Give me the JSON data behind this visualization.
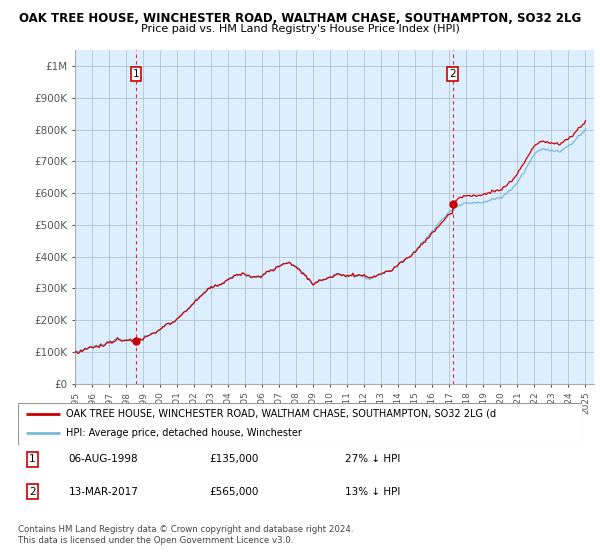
{
  "title": "OAK TREE HOUSE, WINCHESTER ROAD, WALTHAM CHASE, SOUTHAMPTON, SO32 2LG",
  "subtitle": "Price paid vs. HM Land Registry's House Price Index (HPI)",
  "legend_label_red": "OAK TREE HOUSE, WINCHESTER ROAD, WALTHAM CHASE, SOUTHAMPTON, SO32 2LG (d",
  "legend_label_blue": "HPI: Average price, detached house, Winchester",
  "annotation1_label": "1",
  "annotation1_date": "06-AUG-1998",
  "annotation1_price": "£135,000",
  "annotation1_hpi": "27% ↓ HPI",
  "annotation2_label": "2",
  "annotation2_date": "13-MAR-2017",
  "annotation2_price": "£565,000",
  "annotation2_hpi": "13% ↓ HPI",
  "footer": "Contains HM Land Registry data © Crown copyright and database right 2024.\nThis data is licensed under the Open Government Licence v3.0.",
  "ylim": [
    0,
    1050000
  ],
  "yticks": [
    0,
    100000,
    200000,
    300000,
    400000,
    500000,
    600000,
    700000,
    800000,
    900000,
    1000000
  ],
  "ytick_labels": [
    "£0",
    "£100K",
    "£200K",
    "£300K",
    "£400K",
    "£500K",
    "£600K",
    "£700K",
    "£800K",
    "£900K",
    "£1M"
  ],
  "hpi_color": "#7ab8d9",
  "price_color": "#cc0000",
  "background_color": "#ffffff",
  "plot_bg_color": "#ddeeff",
  "grid_color": "#aabbcc",
  "sale1_year": 1998.59,
  "sale1_price": 135000,
  "sale2_year": 2017.19,
  "sale2_price": 565000
}
